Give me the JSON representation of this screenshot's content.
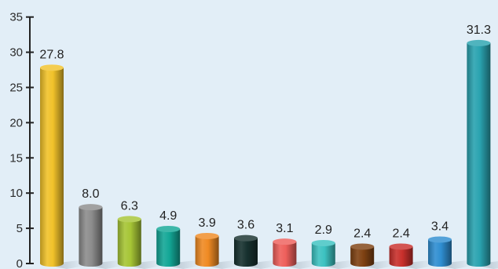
{
  "chart_data": {
    "type": "bar",
    "title": "",
    "xlabel": "",
    "ylabel": "",
    "ylim": [
      0,
      35
    ],
    "yticks": [
      0,
      5,
      10,
      15,
      20,
      25,
      30,
      35
    ],
    "grid": false,
    "legend": "none",
    "style": "3d-cylinder",
    "background": "#e2eef7",
    "categories": [],
    "values": [
      27.8,
      8.0,
      6.3,
      4.9,
      3.9,
      3.6,
      3.1,
      2.9,
      2.4,
      2.4,
      3.4,
      31.3
    ],
    "labels": [
      "27.8",
      "8.0",
      "6.3",
      "4.9",
      "3.9",
      "3.6",
      "3.1",
      "2.9",
      "2.4",
      "2.4",
      "3.4",
      "31.3"
    ],
    "colors": [
      "#f1c22a",
      "#8c8c8c",
      "#a6c535",
      "#13a796",
      "#ef8a23",
      "#17312f",
      "#ee5f5b",
      "#3cc2c1",
      "#7f4212",
      "#c9302c",
      "#2f8ed1",
      "#2aa3b0"
    ]
  }
}
